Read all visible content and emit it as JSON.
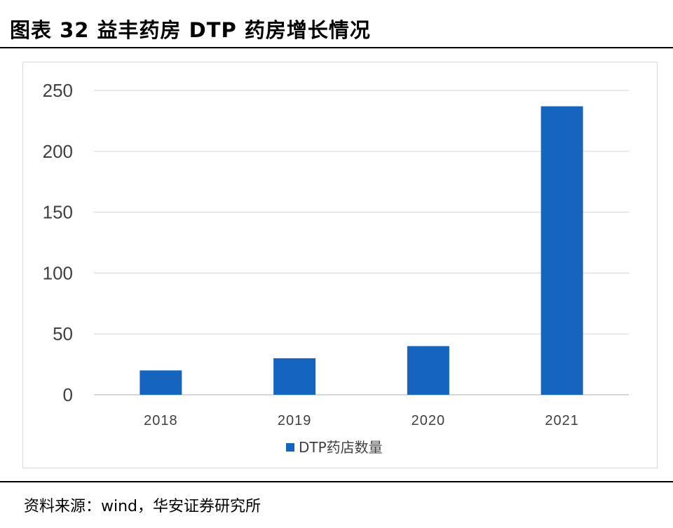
{
  "figure": {
    "title": "图表 32 益丰药房 DTP 药房增长情况",
    "source": "资料来源：wind，华安证券研究所"
  },
  "chart_data": {
    "type": "bar",
    "categories": [
      "2018",
      "2019",
      "2020",
      "2021"
    ],
    "series": [
      {
        "name": "DTP药店数量",
        "values": [
          20,
          30,
          40,
          237
        ],
        "color": "#1565c0"
      }
    ],
    "ylim": [
      0,
      250
    ],
    "yticks": [
      0,
      50,
      100,
      150,
      200,
      250
    ],
    "grid": true,
    "legend_position": "bottom"
  }
}
